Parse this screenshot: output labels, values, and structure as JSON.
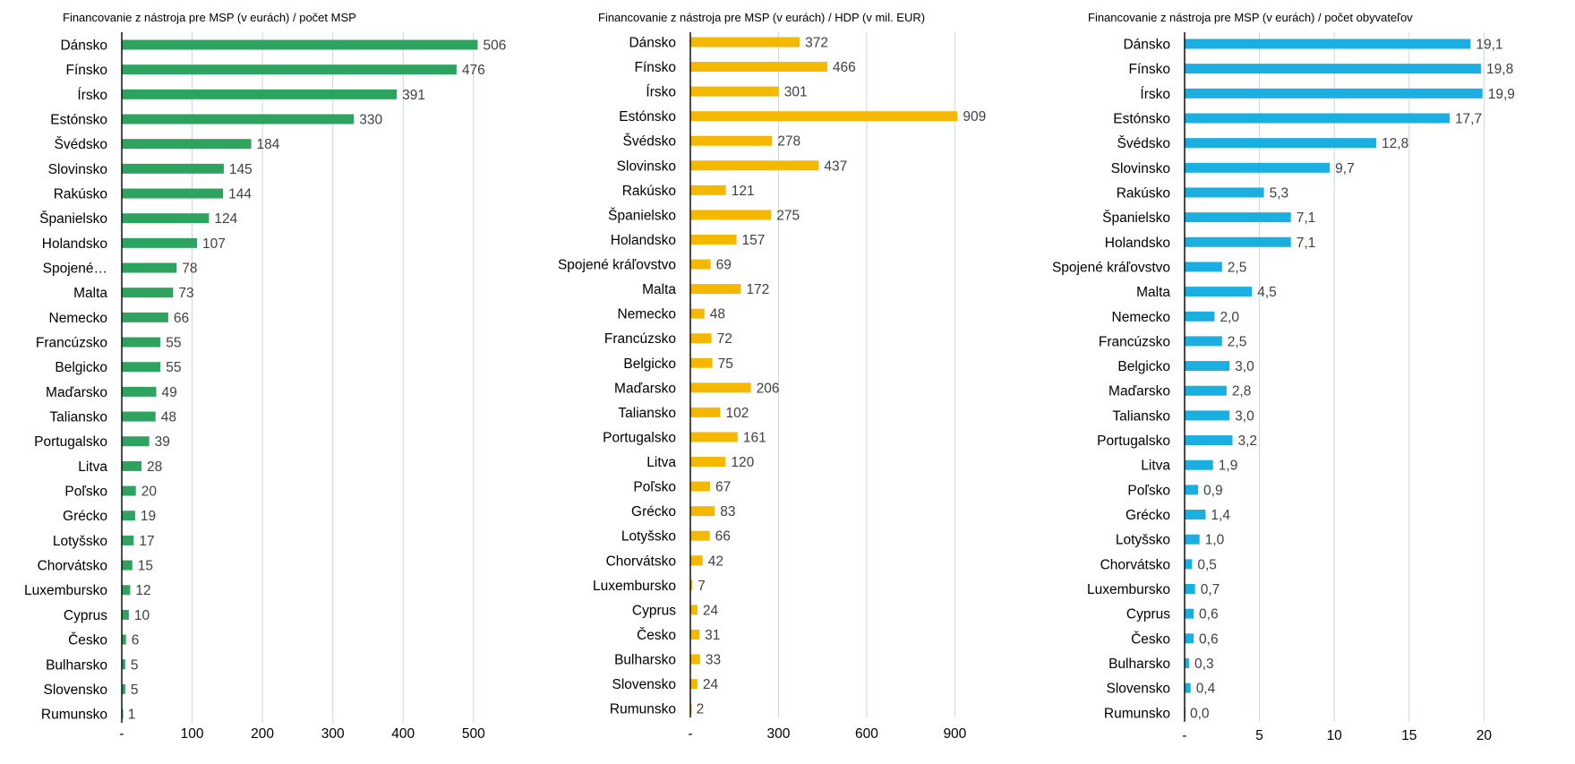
{
  "chart_data": [
    {
      "type": "bar",
      "orientation": "horizontal",
      "title": "Financovanie z nástroja pre MSP (v eurách) / počet MSP",
      "color": "#2ea35f",
      "categories": [
        "Dánsko",
        "Fínsko",
        "Írsko",
        "Estónsko",
        "Švédsko",
        "Slovinsko",
        "Rakúsko",
        "Španielsko",
        "Holandsko",
        "Spojené…",
        "Malta",
        "Nemecko",
        "Francúzsko",
        "Belgicko",
        "Maďarsko",
        "Taliansko",
        "Portugalsko",
        "Litva",
        "Poľsko",
        "Grécko",
        "Lotyšsko",
        "Chorvátsko",
        "Luxembursko",
        "Cyprus",
        "Česko",
        "Bulharsko",
        "Slovensko",
        "Rumunsko"
      ],
      "values": [
        506,
        476,
        391,
        330,
        184,
        145,
        144,
        124,
        107,
        78,
        73,
        66,
        55,
        55,
        49,
        48,
        39,
        28,
        20,
        19,
        17,
        15,
        12,
        10,
        6,
        5,
        5,
        1
      ],
      "value_labels": [
        "506",
        "476",
        "391",
        "330",
        "184",
        "145",
        "144",
        "124",
        "107",
        "78",
        "73",
        "66",
        "55",
        "55",
        "49",
        "48",
        "39",
        "28",
        "20",
        "19",
        "17",
        "15",
        "12",
        "10",
        "6",
        "5",
        "5",
        "1"
      ],
      "xlim": [
        0,
        600
      ],
      "ticks": [
        0,
        100,
        200,
        300,
        400,
        500
      ],
      "tick_labels": [
        "-",
        "100",
        "200",
        "300",
        "400",
        "500"
      ],
      "grid": true
    },
    {
      "type": "bar",
      "orientation": "horizontal",
      "title": "Financovanie z nástroja pre MSP (v eurách) / HDP (v mil. EUR)",
      "color": "#f5b800",
      "categories": [
        "Dánsko",
        "Fínsko",
        "Írsko",
        "Estónsko",
        "Švédsko",
        "Slovinsko",
        "Rakúsko",
        "Španielsko",
        "Holandsko",
        "Spojené kráľovstvo",
        "Malta",
        "Nemecko",
        "Francúzsko",
        "Belgicko",
        "Maďarsko",
        "Taliansko",
        "Portugalsko",
        "Litva",
        "Poľsko",
        "Grécko",
        "Lotyšsko",
        "Chorvátsko",
        "Luxembursko",
        "Cyprus",
        "Česko",
        "Bulharsko",
        "Slovensko",
        "Rumunsko"
      ],
      "values": [
        372,
        466,
        301,
        909,
        278,
        437,
        121,
        275,
        157,
        69,
        172,
        48,
        72,
        75,
        206,
        102,
        161,
        120,
        67,
        83,
        66,
        42,
        7,
        24,
        31,
        33,
        24,
        2
      ],
      "value_labels": [
        "372",
        "466",
        "301",
        "909",
        "278",
        "437",
        "121",
        "275",
        "157",
        "69",
        "172",
        "48",
        "72",
        "75",
        "206",
        "102",
        "161",
        "120",
        "67",
        "83",
        "66",
        "42",
        "7",
        "24",
        "31",
        "33",
        "24",
        "2"
      ],
      "xlim": [
        0,
        1000
      ],
      "ticks": [
        0,
        300,
        600,
        900
      ],
      "tick_labels": [
        "-",
        "300",
        "600",
        "900"
      ],
      "grid": true
    },
    {
      "type": "bar",
      "orientation": "horizontal",
      "title": "Financovanie z nástroja pre MSP (v eurách) / počet obyvateľov",
      "color": "#1aafe0",
      "categories": [
        "Dánsko",
        "Fínsko",
        "Írsko",
        "Estónsko",
        "Švédsko",
        "Slovinsko",
        "Rakúsko",
        "Španielsko",
        "Holandsko",
        "Spojené kráľovstvo",
        "Malta",
        "Nemecko",
        "Francúzsko",
        "Belgicko",
        "Maďarsko",
        "Taliansko",
        "Portugalsko",
        "Litva",
        "Poľsko",
        "Grécko",
        "Lotyšsko",
        "Chorvátsko",
        "Luxembursko",
        "Cyprus",
        "Česko",
        "Bulharsko",
        "Slovensko",
        "Rumunsko"
      ],
      "values": [
        19.1,
        19.8,
        19.9,
        17.7,
        12.8,
        9.7,
        5.3,
        7.1,
        7.1,
        2.5,
        4.5,
        2.0,
        2.5,
        3.0,
        2.8,
        3.0,
        3.2,
        1.9,
        0.9,
        1.4,
        1.0,
        0.5,
        0.7,
        0.6,
        0.6,
        0.3,
        0.4,
        0.0
      ],
      "value_labels": [
        "19,1",
        "19,8",
        "19,9",
        "17,7",
        "12,8",
        "9,7",
        "5,3",
        "7,1",
        "7,1",
        "2,5",
        "4,5",
        "2,0",
        "2,5",
        "3,0",
        "2,8",
        "3,0",
        "3,2",
        "1,9",
        "0,9",
        "1,4",
        "1,0",
        "0,5",
        "0,7",
        "0,6",
        "0,6",
        "0,3",
        "0,4",
        "0,0"
      ],
      "xlim": [
        0,
        20
      ],
      "ticks": [
        0,
        5,
        10,
        15,
        20
      ],
      "tick_labels": [
        "-",
        "5",
        "10",
        "15",
        "20"
      ],
      "grid": true
    }
  ]
}
